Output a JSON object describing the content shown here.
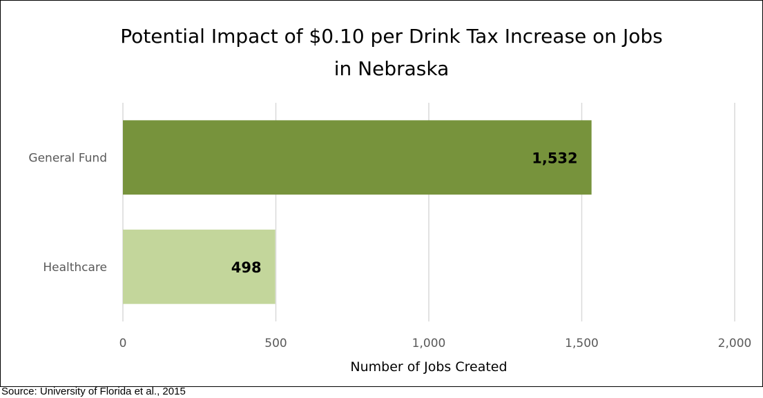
{
  "chart_data": {
    "type": "bar",
    "orientation": "horizontal",
    "title": "Potential Impact of $0.10 per Drink Tax Increase on Jobs in Nebraska",
    "title_lines": [
      "Potential Impact of $0.10 per Drink Tax Increase on Jobs",
      "in Nebraska"
    ],
    "categories": [
      "General Fund",
      "Healthcare"
    ],
    "values": [
      1532,
      498
    ],
    "data_labels": [
      "1,532",
      "498"
    ],
    "bar_colors": [
      "#77933C",
      "#C3D69B"
    ],
    "xlabel": "Number of Jobs Created",
    "ylabel": "",
    "xlim": [
      0,
      2000
    ],
    "x_ticks": [
      0,
      500,
      1000,
      1500,
      2000
    ],
    "x_tick_labels": [
      "0",
      "500",
      "1,000",
      "1,500",
      "2,000"
    ],
    "grid": true,
    "gridline_color": "#D9D9D9",
    "legend": "none"
  },
  "source_note": "Source: University of Florida et al., 2015"
}
